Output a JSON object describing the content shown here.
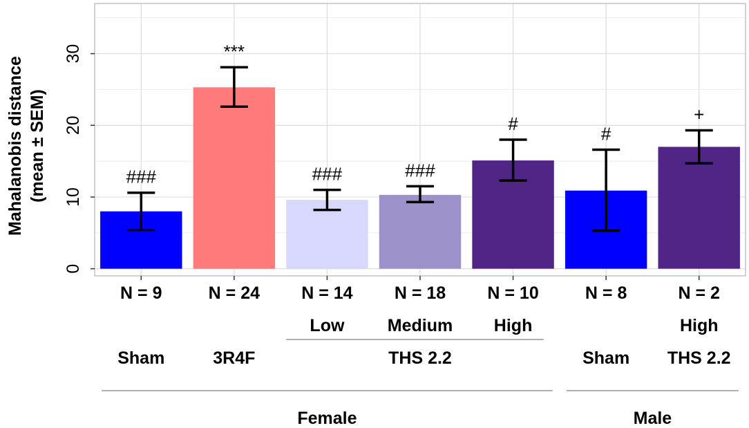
{
  "chart_data": {
    "type": "bar",
    "ylabel": "Mahalanobis distance",
    "ylabel_sub": "(mean ± SEM)",
    "ylim": [
      -1,
      37
    ],
    "yticks": [
      0,
      10,
      20,
      30
    ],
    "y_tick_labels": [
      "0",
      "10",
      "20",
      "30"
    ],
    "grid": true,
    "bars": [
      {
        "n_label": "N = 9",
        "mean": 8.0,
        "err_low": 5.4,
        "err_high": 10.6,
        "color": "#0000ff",
        "annotation": "###"
      },
      {
        "n_label": "N = 24",
        "mean": 25.3,
        "err_low": 22.6,
        "err_high": 28.1,
        "color": "#ff7b7b",
        "annotation": "***"
      },
      {
        "n_label": "N = 14",
        "mean": 9.6,
        "err_low": 8.2,
        "err_high": 11.0,
        "color": "#d8d8ff",
        "annotation": "###"
      },
      {
        "n_label": "N = 18",
        "mean": 10.3,
        "err_low": 9.3,
        "err_high": 11.5,
        "color": "#9c92c9",
        "annotation": "###"
      },
      {
        "n_label": "N = 10",
        "mean": 15.1,
        "err_low": 12.3,
        "err_high": 18.0,
        "color": "#512586",
        "annotation": "#"
      },
      {
        "n_label": "N = 8",
        "mean": 10.9,
        "err_low": 5.3,
        "err_high": 16.6,
        "color": "#0000ff",
        "annotation": "#"
      },
      {
        "n_label": "N = 2",
        "mean": 17.0,
        "err_low": 14.7,
        "err_high": 19.3,
        "color": "#512586",
        "annotation": "+"
      }
    ],
    "dose_labels": [
      {
        "bar": 2,
        "text": "Low"
      },
      {
        "bar": 3,
        "text": "Medium"
      },
      {
        "bar": 4,
        "text": "High"
      },
      {
        "bar": 6,
        "text": "High"
      }
    ],
    "group_labels": [
      {
        "bar": 0,
        "text": "Sham"
      },
      {
        "bar": 1,
        "text": "3R4F"
      },
      {
        "bar": 3,
        "text": "THS 2.2"
      },
      {
        "bar": 5,
        "text": "Sham"
      },
      {
        "bar": 6,
        "text": "THS 2.2"
      }
    ],
    "sex_labels": [
      {
        "from": 0,
        "to": 4,
        "text": "Female"
      },
      {
        "from": 5,
        "to": 6,
        "text": "Male"
      }
    ],
    "dose_bracket": {
      "from": 2,
      "to": 4
    }
  }
}
